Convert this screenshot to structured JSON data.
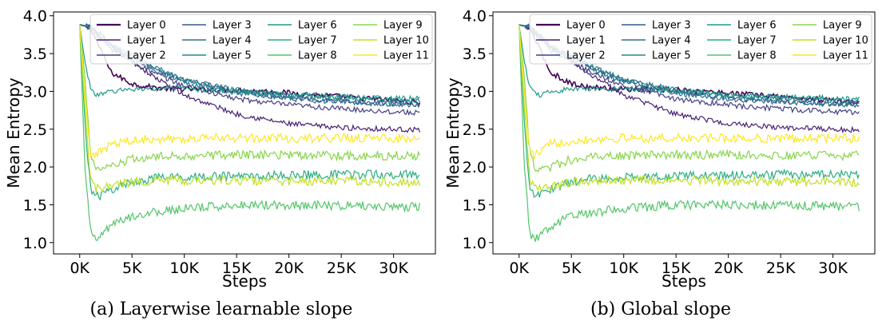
{
  "colors": {
    "layers": [
      "#440154",
      "#482173",
      "#433e85",
      "#38588c",
      "#2d708e",
      "#25858e",
      "#1e9b8a",
      "#2ab07f",
      "#52c569",
      "#86d549",
      "#c2df23",
      "#fde725"
    ]
  },
  "chart_data": [
    {
      "type": "line",
      "caption": "(a) Layerwise learnable slope",
      "xlabel": "Steps",
      "ylabel": "Mean Entropy",
      "xlim": [
        -2500,
        34000
      ],
      "ylim": [
        0.85,
        4.05
      ],
      "xticks": [
        0,
        5000,
        10000,
        15000,
        20000,
        25000,
        30000
      ],
      "xtick_labels": [
        "0K",
        "5K",
        "10K",
        "15K",
        "20K",
        "25K",
        "30K"
      ],
      "yticks": [
        1.0,
        1.5,
        2.0,
        2.5,
        3.0,
        3.5,
        4.0
      ],
      "ytick_labels": [
        "1.0",
        "1.5",
        "2.0",
        "2.5",
        "3.0",
        "3.5",
        "4.0"
      ],
      "legend_position": "top-right",
      "legend_columns": 4,
      "series": [
        {
          "name": "Layer 0",
          "x": [
            0,
            1000,
            2000,
            3000,
            5000,
            7000,
            10000,
            15000,
            20000,
            25000,
            30000,
            32500
          ],
          "values": [
            3.88,
            3.85,
            3.55,
            3.25,
            3.1,
            3.05,
            3.03,
            3.02,
            2.98,
            2.93,
            2.88,
            2.85
          ]
        },
        {
          "name": "Layer 1",
          "x": [
            0,
            1000,
            2000,
            3000,
            5000,
            7000,
            10000,
            15000,
            20000,
            25000,
            30000,
            32500
          ],
          "values": [
            3.88,
            3.85,
            3.75,
            3.6,
            3.4,
            3.2,
            2.95,
            2.7,
            2.57,
            2.52,
            2.5,
            2.49
          ]
        },
        {
          "name": "Layer 2",
          "x": [
            0,
            1000,
            2000,
            3000,
            5000,
            7000,
            10000,
            15000,
            20000,
            25000,
            30000,
            32500
          ],
          "values": [
            3.88,
            3.85,
            3.7,
            3.55,
            3.4,
            3.25,
            3.07,
            2.9,
            2.82,
            2.77,
            2.73,
            2.72
          ]
        },
        {
          "name": "Layer 3",
          "x": [
            0,
            1000,
            2000,
            3000,
            5000,
            7000,
            10000,
            15000,
            20000,
            25000,
            30000,
            32500
          ],
          "values": [
            3.88,
            3.85,
            3.72,
            3.6,
            3.47,
            3.32,
            3.15,
            3.0,
            2.92,
            2.87,
            2.84,
            2.83
          ]
        },
        {
          "name": "Layer 4",
          "x": [
            0,
            1000,
            2000,
            3000,
            5000,
            7000,
            10000,
            15000,
            20000,
            25000,
            30000,
            32500
          ],
          "values": [
            3.88,
            3.85,
            3.7,
            3.58,
            3.45,
            3.3,
            3.12,
            2.98,
            2.9,
            2.86,
            2.83,
            2.82
          ]
        },
        {
          "name": "Layer 5",
          "x": [
            0,
            1000,
            2000,
            3000,
            5000,
            7000,
            10000,
            15000,
            20000,
            25000,
            30000,
            32500
          ],
          "values": [
            3.88,
            3.85,
            3.72,
            3.6,
            3.47,
            3.33,
            3.15,
            3.02,
            2.95,
            2.91,
            2.88,
            2.87
          ]
        },
        {
          "name": "Layer 6",
          "x": [
            0,
            500,
            1000,
            1500,
            2000,
            3000,
            5000,
            7000,
            10000,
            15000,
            20000,
            25000,
            30000,
            32500
          ],
          "values": [
            3.88,
            3.4,
            3.05,
            2.97,
            2.95,
            3.0,
            3.03,
            3.04,
            3.04,
            3.0,
            2.96,
            2.93,
            2.91,
            2.9
          ]
        },
        {
          "name": "Layer 7",
          "x": [
            0,
            500,
            1000,
            1500,
            2000,
            3000,
            5000,
            7000,
            10000,
            15000,
            20000,
            25000,
            30000,
            32500
          ],
          "values": [
            3.88,
            2.6,
            1.75,
            1.6,
            1.62,
            1.7,
            1.8,
            1.85,
            1.87,
            1.88,
            1.89,
            1.9,
            1.9,
            1.9
          ]
        },
        {
          "name": "Layer 8",
          "x": [
            0,
            500,
            1000,
            1500,
            2000,
            3000,
            5000,
            7000,
            10000,
            15000,
            20000,
            25000,
            30000,
            32500
          ],
          "values": [
            3.88,
            2.0,
            1.15,
            1.02,
            1.1,
            1.22,
            1.35,
            1.4,
            1.45,
            1.5,
            1.5,
            1.49,
            1.48,
            1.47
          ]
        },
        {
          "name": "Layer 9",
          "x": [
            0,
            500,
            1000,
            1500,
            2000,
            3000,
            5000,
            7000,
            10000,
            15000,
            20000,
            25000,
            30000,
            32500
          ],
          "values": [
            3.88,
            3.2,
            2.2,
            2.0,
            1.95,
            2.0,
            2.1,
            2.13,
            2.15,
            2.16,
            2.16,
            2.15,
            2.15,
            2.15
          ]
        },
        {
          "name": "Layer 10",
          "x": [
            0,
            500,
            1000,
            1500,
            2000,
            3000,
            5000,
            7000,
            10000,
            15000,
            20000,
            25000,
            30000,
            32500
          ],
          "values": [
            3.88,
            2.8,
            1.85,
            1.72,
            1.7,
            1.75,
            1.8,
            1.82,
            1.82,
            1.82,
            1.81,
            1.81,
            1.8,
            1.8
          ]
        },
        {
          "name": "Layer 11",
          "x": [
            0,
            500,
            1000,
            1500,
            2000,
            3000,
            5000,
            7000,
            10000,
            15000,
            20000,
            25000,
            30000,
            32500
          ],
          "values": [
            3.88,
            3.0,
            2.2,
            2.15,
            2.2,
            2.3,
            2.35,
            2.37,
            2.38,
            2.38,
            2.38,
            2.38,
            2.38,
            2.38
          ]
        }
      ]
    },
    {
      "type": "line",
      "caption": "(b) Global slope",
      "xlabel": "Steps",
      "ylabel": "Mean Entropy",
      "xlim": [
        -2500,
        34000
      ],
      "ylim": [
        0.85,
        4.05
      ],
      "xticks": [
        0,
        5000,
        10000,
        15000,
        20000,
        25000,
        30000
      ],
      "xtick_labels": [
        "0K",
        "5K",
        "10K",
        "15K",
        "20K",
        "25K",
        "30K"
      ],
      "yticks": [
        1.0,
        1.5,
        2.0,
        2.5,
        3.0,
        3.5,
        4.0
      ],
      "ytick_labels": [
        "1.0",
        "1.5",
        "2.0",
        "2.5",
        "3.0",
        "3.5",
        "4.0"
      ],
      "legend_position": "top-right",
      "legend_columns": 4,
      "series": [
        {
          "name": "Layer 0",
          "x": [
            0,
            1000,
            2000,
            3000,
            5000,
            7000,
            10000,
            15000,
            20000,
            25000,
            30000,
            32500
          ],
          "values": [
            3.88,
            3.85,
            3.55,
            3.25,
            3.1,
            3.05,
            3.03,
            3.02,
            2.98,
            2.93,
            2.88,
            2.85
          ]
        },
        {
          "name": "Layer 1",
          "x": [
            0,
            1000,
            2000,
            3000,
            5000,
            7000,
            10000,
            15000,
            20000,
            25000,
            30000,
            32500
          ],
          "values": [
            3.88,
            3.85,
            3.75,
            3.6,
            3.4,
            3.2,
            2.95,
            2.7,
            2.57,
            2.52,
            2.5,
            2.49
          ]
        },
        {
          "name": "Layer 2",
          "x": [
            0,
            1000,
            2000,
            3000,
            5000,
            7000,
            10000,
            15000,
            20000,
            25000,
            30000,
            32500
          ],
          "values": [
            3.88,
            3.85,
            3.7,
            3.55,
            3.4,
            3.25,
            3.07,
            2.9,
            2.82,
            2.77,
            2.73,
            2.72
          ]
        },
        {
          "name": "Layer 3",
          "x": [
            0,
            1000,
            2000,
            3000,
            5000,
            7000,
            10000,
            15000,
            20000,
            25000,
            30000,
            32500
          ],
          "values": [
            3.88,
            3.85,
            3.72,
            3.6,
            3.47,
            3.32,
            3.15,
            3.0,
            2.92,
            2.87,
            2.84,
            2.83
          ]
        },
        {
          "name": "Layer 4",
          "x": [
            0,
            1000,
            2000,
            3000,
            5000,
            7000,
            10000,
            15000,
            20000,
            25000,
            30000,
            32500
          ],
          "values": [
            3.88,
            3.85,
            3.7,
            3.58,
            3.45,
            3.3,
            3.12,
            2.98,
            2.9,
            2.86,
            2.83,
            2.82
          ]
        },
        {
          "name": "Layer 5",
          "x": [
            0,
            1000,
            2000,
            3000,
            5000,
            7000,
            10000,
            15000,
            20000,
            25000,
            30000,
            32500
          ],
          "values": [
            3.88,
            3.85,
            3.72,
            3.6,
            3.47,
            3.33,
            3.15,
            3.02,
            2.95,
            2.91,
            2.88,
            2.87
          ]
        },
        {
          "name": "Layer 6",
          "x": [
            0,
            500,
            1000,
            1500,
            2000,
            3000,
            5000,
            7000,
            10000,
            15000,
            20000,
            25000,
            30000,
            32500
          ],
          "values": [
            3.88,
            3.4,
            3.05,
            2.97,
            2.95,
            3.0,
            3.03,
            3.04,
            3.04,
            3.0,
            2.96,
            2.93,
            2.91,
            2.9
          ]
        },
        {
          "name": "Layer 7",
          "x": [
            0,
            500,
            1000,
            1500,
            2000,
            3000,
            5000,
            7000,
            10000,
            15000,
            20000,
            25000,
            30000,
            32500
          ],
          "values": [
            3.88,
            2.6,
            1.75,
            1.6,
            1.62,
            1.7,
            1.8,
            1.85,
            1.87,
            1.88,
            1.89,
            1.9,
            1.9,
            1.9
          ]
        },
        {
          "name": "Layer 8",
          "x": [
            0,
            500,
            1000,
            1500,
            2000,
            3000,
            5000,
            7000,
            10000,
            15000,
            20000,
            25000,
            30000,
            32500
          ],
          "values": [
            3.88,
            2.0,
            1.15,
            1.02,
            1.1,
            1.22,
            1.35,
            1.4,
            1.45,
            1.5,
            1.5,
            1.49,
            1.48,
            1.47
          ]
        },
        {
          "name": "Layer 9",
          "x": [
            0,
            500,
            1000,
            1500,
            2000,
            3000,
            5000,
            7000,
            10000,
            15000,
            20000,
            25000,
            30000,
            32500
          ],
          "values": [
            3.88,
            3.2,
            2.2,
            2.0,
            1.95,
            2.0,
            2.1,
            2.13,
            2.15,
            2.16,
            2.16,
            2.15,
            2.15,
            2.15
          ]
        },
        {
          "name": "Layer 10",
          "x": [
            0,
            500,
            1000,
            1500,
            2000,
            3000,
            5000,
            7000,
            10000,
            15000,
            20000,
            25000,
            30000,
            32500
          ],
          "values": [
            3.88,
            2.8,
            1.85,
            1.72,
            1.7,
            1.75,
            1.8,
            1.82,
            1.82,
            1.82,
            1.81,
            1.81,
            1.8,
            1.8
          ]
        },
        {
          "name": "Layer 11",
          "x": [
            0,
            500,
            1000,
            1500,
            2000,
            3000,
            5000,
            7000,
            10000,
            15000,
            20000,
            25000,
            30000,
            32500
          ],
          "values": [
            3.88,
            3.0,
            2.2,
            2.15,
            2.2,
            2.3,
            2.35,
            2.37,
            2.38,
            2.38,
            2.38,
            2.38,
            2.38,
            2.38
          ]
        }
      ]
    }
  ]
}
